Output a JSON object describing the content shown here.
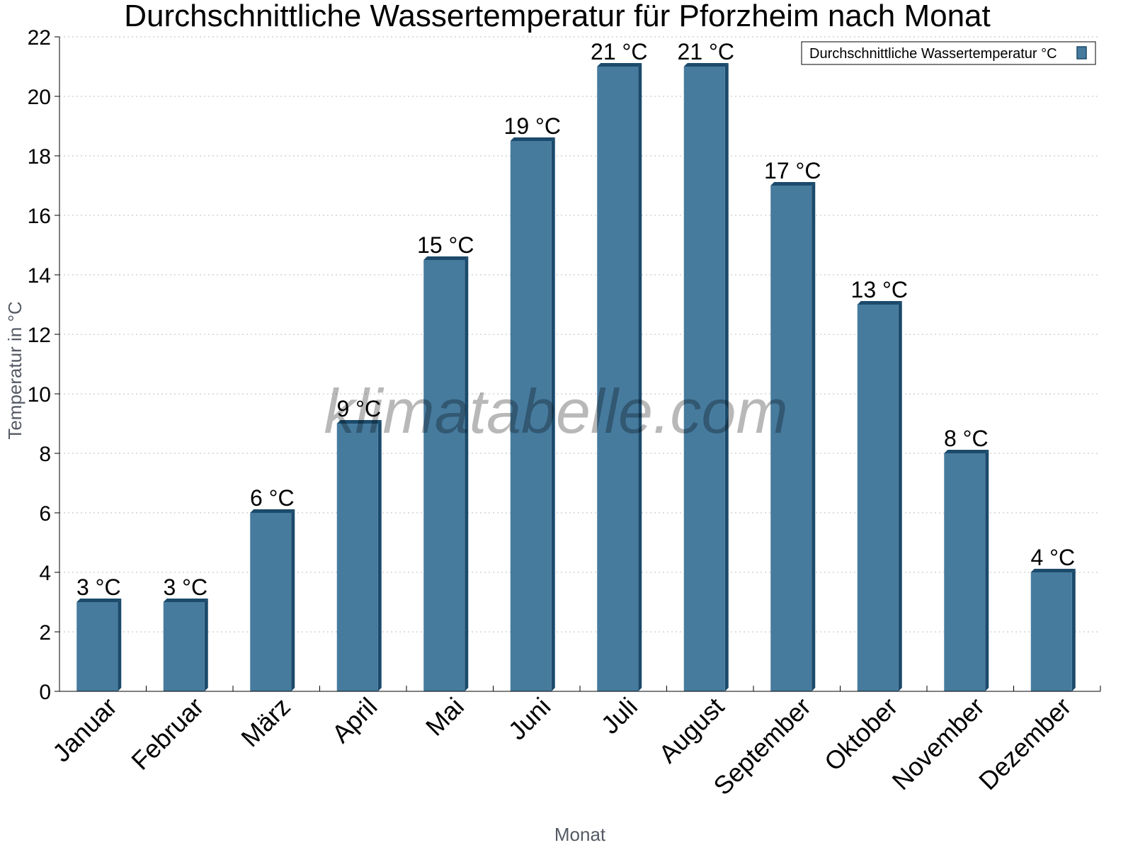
{
  "chart_data": {
    "type": "bar",
    "title": "Durchschnittliche Wassertemperatur für Pforzheim nach Monat",
    "xlabel": "Monat",
    "ylabel": "Temperatur in °C",
    "categories": [
      "Januar",
      "Februar",
      "März",
      "April",
      "Mai",
      "Juni",
      "Juli",
      "August",
      "September",
      "Oktober",
      "November",
      "Dezember"
    ],
    "series": [
      {
        "name": "Durchschnittliche Wassertemperatur °C",
        "values": [
          3,
          3,
          6,
          9,
          14.5,
          18.5,
          21,
          21,
          17,
          13,
          8,
          4
        ],
        "labels": [
          "3 °C",
          "3 °C",
          "6 °C",
          "9 °C",
          "15 °C",
          "19 °C",
          "21 °C",
          "21 °C",
          "17 °C",
          "13 °C",
          "8 °C",
          "4 °C"
        ],
        "color": "#467b9e"
      }
    ],
    "ylim": [
      0,
      22
    ],
    "yticks": [
      0,
      2,
      4,
      6,
      8,
      10,
      12,
      14,
      16,
      18,
      20,
      22
    ],
    "grid": true,
    "legend_position": "top-right",
    "watermark": "klimatabelle.com"
  }
}
